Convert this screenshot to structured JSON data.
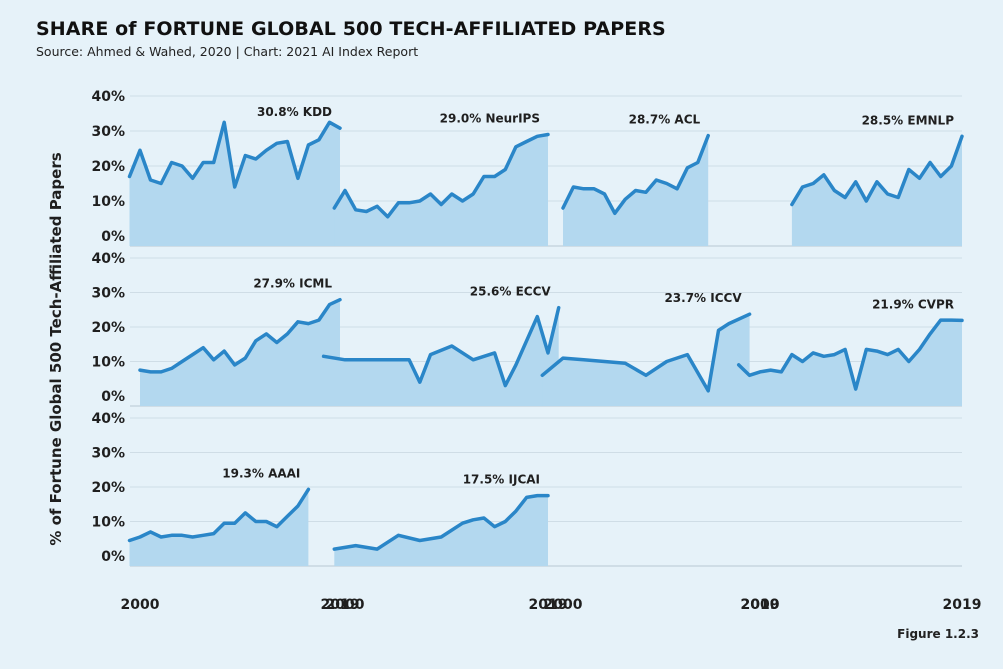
{
  "title": "SHARE of FORTUNE GLOBAL 500 TECH-AFFILIATED PAPERS",
  "subtitle": "Source: Ahmed & Wahed, 2020 | Chart: 2021 AI Index Report",
  "figure_label": "Figure 1.2.3",
  "colors": {
    "line": "#2a86c8",
    "fill": "#b3d8ef",
    "grid": "#cfdde6",
    "background": "#e6f2f9"
  },
  "chart_data": {
    "type": "area",
    "ylabel": "% of Fortune Global 500 Tech-Affiliated Papers",
    "ylim": [
      0,
      40
    ],
    "y_ticks": [
      "0%",
      "10%",
      "20%",
      "30%",
      "40%"
    ],
    "x_ticks": [
      "2000",
      "2019"
    ],
    "grid": true,
    "panels": [
      {
        "name": "KDD",
        "annotation": "30.8% KDD",
        "x": [
          1999,
          2000,
          2001,
          2002,
          2003,
          2004,
          2005,
          2006,
          2007,
          2008,
          2009,
          2010,
          2011,
          2012,
          2013,
          2014,
          2015,
          2016,
          2017,
          2018,
          2019
        ],
        "values": [
          17,
          24.5,
          16,
          15,
          21,
          20,
          16.5,
          21,
          21,
          32.5,
          14,
          23,
          22,
          24.5,
          26.5,
          27,
          16.5,
          26,
          27.5,
          32.5,
          30.8
        ]
      },
      {
        "name": "NeurIPS",
        "annotation": "29.0% NeurIPS",
        "x": [
          1999,
          2000,
          2001,
          2002,
          2003,
          2004,
          2005,
          2006,
          2007,
          2008,
          2009,
          2010,
          2011,
          2012,
          2013,
          2014,
          2015,
          2016,
          2017,
          2018,
          2019
        ],
        "values": [
          8,
          13,
          7.5,
          7,
          8.5,
          5.5,
          9.5,
          9.5,
          10,
          12,
          9,
          12,
          10,
          12,
          17,
          17,
          19,
          25.5,
          27,
          28.5,
          29
        ]
      },
      {
        "name": "ACL",
        "annotation": "28.7% ACL",
        "x": [
          2000,
          2001,
          2002,
          2003,
          2004,
          2005,
          2006,
          2007,
          2008,
          2009,
          2010,
          2011,
          2012,
          2013,
          2014
        ],
        "values": [
          8,
          14,
          13.5,
          13.5,
          12,
          6.5,
          10.5,
          13,
          12.5,
          16,
          15,
          13.5,
          19.5,
          21,
          28.7
        ]
      },
      {
        "name": "EMNLP",
        "annotation": "28.5% EMNLP",
        "x": [
          2003,
          2004,
          2005,
          2006,
          2007,
          2008,
          2009,
          2010,
          2011,
          2012,
          2013,
          2014,
          2015,
          2016,
          2017,
          2018,
          2019
        ],
        "values": [
          9,
          14,
          15,
          17.5,
          13,
          11,
          15.5,
          10,
          15.5,
          12,
          11,
          19,
          16.5,
          21,
          17,
          20,
          28.5
        ]
      },
      {
        "name": "ICML",
        "annotation": "27.9% ICML",
        "x": [
          2000,
          2001,
          2002,
          2003,
          2004,
          2005,
          2006,
          2007,
          2008,
          2009,
          2010,
          2011,
          2012,
          2013,
          2014,
          2015,
          2016,
          2017,
          2018,
          2019
        ],
        "values": [
          7.5,
          7,
          7,
          8,
          10,
          12,
          14,
          10.5,
          13,
          9,
          11,
          16,
          18,
          15.5,
          18,
          21.5,
          21,
          22,
          26.5,
          27.9
        ]
      },
      {
        "name": "ECCV",
        "annotation": "25.6% ECCV",
        "x": [
          1998,
          2000,
          2002,
          2004,
          2006,
          2007,
          2008,
          2010,
          2012,
          2014,
          2015,
          2016,
          2018,
          2019,
          2020
        ],
        "values": [
          11.5,
          10.5,
          10.5,
          10.5,
          10.5,
          4,
          12,
          14.5,
          10.5,
          12.5,
          3,
          9,
          23,
          12.5,
          25.6
        ]
      },
      {
        "name": "ICCV",
        "annotation": "23.7% ICCV",
        "x": [
          1998,
          2000,
          2002,
          2004,
          2006,
          2008,
          2010,
          2012,
          2014,
          2015,
          2016,
          2018
        ],
        "values": [
          6,
          11,
          10.5,
          10,
          9.5,
          6,
          10,
          12,
          1.5,
          19,
          21,
          23.7
        ]
      },
      {
        "name": "CVPR",
        "annotation": "21.9% CVPR",
        "x": [
          1998,
          1999,
          2000,
          2001,
          2002,
          2003,
          2004,
          2005,
          2006,
          2007,
          2008,
          2009,
          2010,
          2011,
          2012,
          2013,
          2014,
          2015,
          2016,
          2017,
          2018,
          2019
        ],
        "values": [
          9,
          6,
          7,
          7.5,
          7,
          12,
          10,
          12.5,
          11.5,
          12,
          13.5,
          2,
          13.5,
          13,
          12,
          13.5,
          10,
          13.5,
          18,
          22,
          22,
          21.9
        ]
      },
      {
        "name": "AAAI",
        "annotation": "19.3% AAAI",
        "x": [
          1999,
          2000,
          2001,
          2002,
          2003,
          2004,
          2005,
          2006,
          2007,
          2008,
          2009,
          2010,
          2011,
          2012,
          2013,
          2014,
          2015,
          2016,
          2017,
          2018,
          2019
        ],
        "values": [
          4.5,
          5.5,
          7,
          5.5,
          6,
          6,
          5.5,
          6,
          6.5,
          9.5,
          9.5,
          12.5,
          10,
          10,
          8.5,
          11.5,
          14.5,
          19.3,
          null,
          null,
          null
        ]
      },
      {
        "name": "IJCAI",
        "annotation": "17.5% IJCAI",
        "x": [
          1999,
          2001,
          2003,
          2005,
          2007,
          2009,
          2011,
          2012,
          2013,
          2014,
          2015,
          2016,
          2017,
          2018,
          2019
        ],
        "values": [
          2,
          3,
          2,
          6,
          4.5,
          5.5,
          9.5,
          10.5,
          11,
          8.5,
          10,
          13,
          17,
          17.5,
          17.5
        ]
      }
    ]
  }
}
